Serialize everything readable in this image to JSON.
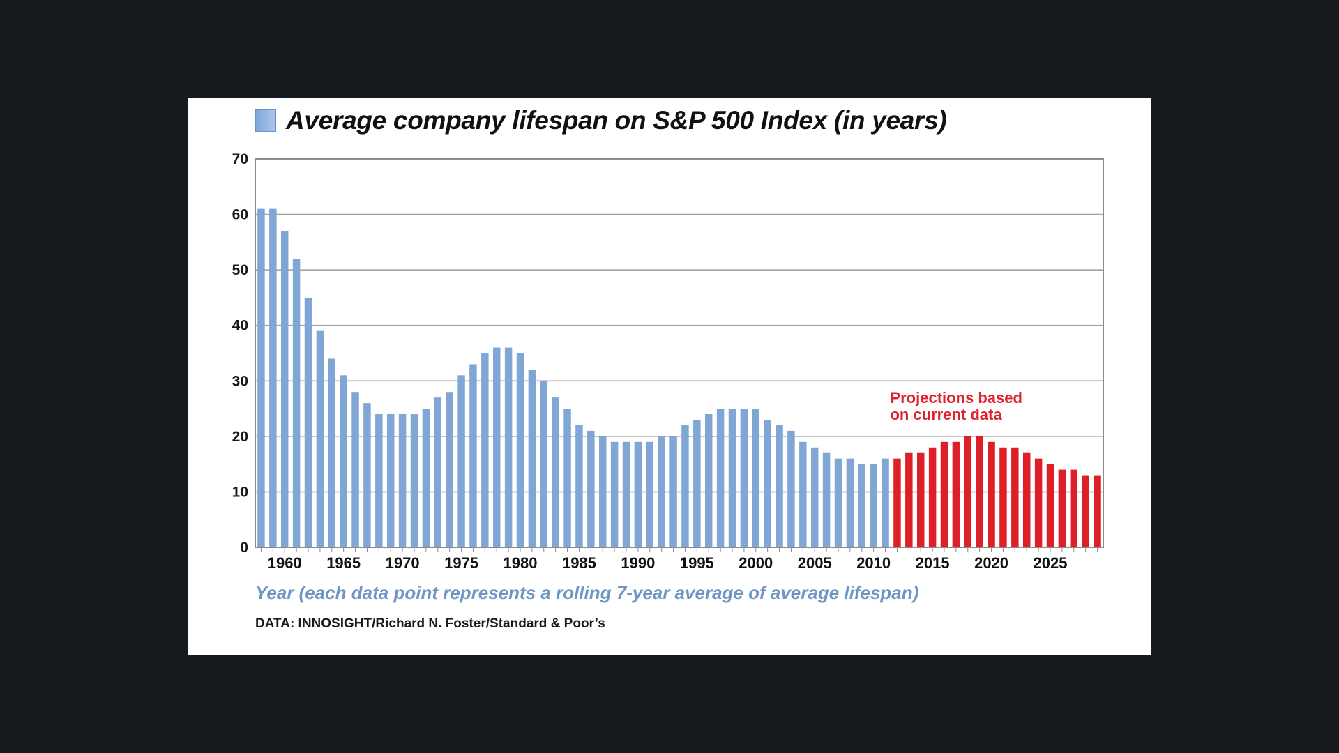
{
  "chart_data": {
    "type": "bar",
    "title": "Average company lifespan on S&P 500 Index (in years)",
    "xlabel": "Year (each data point represents a rolling 7-year average of average lifespan)",
    "ylabel": "",
    "ylim": [
      0,
      70
    ],
    "yticks": [
      "0",
      "10",
      "20",
      "30",
      "40",
      "50",
      "60",
      "70"
    ],
    "xticks": [
      "1960",
      "1965",
      "1970",
      "1975",
      "1980",
      "1985",
      "1990",
      "1995",
      "2000",
      "2005",
      "2010",
      "2015",
      "2020",
      "2025"
    ],
    "grid": true,
    "legend_position": "top-left",
    "annotation": {
      "lines": [
        "Projections based",
        "on current data"
      ]
    },
    "series": [
      {
        "name": "Average company lifespan on S&P 500 Index (in years)",
        "color": "#7fa6d4",
        "x": [
          1958,
          1959,
          1960,
          1961,
          1962,
          1963,
          1964,
          1965,
          1966,
          1967,
          1968,
          1969,
          1970,
          1971,
          1972,
          1973,
          1974,
          1975,
          1976,
          1977,
          1978,
          1979,
          1980,
          1981,
          1982,
          1983,
          1984,
          1985,
          1986,
          1987,
          1988,
          1989,
          1990,
          1991,
          1992,
          1993,
          1994,
          1995,
          1996,
          1997,
          1998,
          1999,
          2000,
          2001,
          2002,
          2003,
          2004,
          2005,
          2006,
          2007,
          2008,
          2009,
          2010,
          2011
        ],
        "values": [
          61,
          61,
          57,
          52,
          45,
          39,
          34,
          31,
          28,
          26,
          24,
          24,
          24,
          24,
          25,
          27,
          28,
          31,
          33,
          35,
          36,
          36,
          35,
          32,
          30,
          27,
          25,
          22,
          21,
          20,
          19,
          19,
          19,
          19,
          20,
          20,
          22,
          23,
          24,
          25,
          25,
          25,
          25,
          23,
          22,
          21,
          19,
          18,
          17,
          16,
          16,
          15,
          15,
          16
        ]
      },
      {
        "name": "",
        "color": "#dd1f27",
        "x": [
          2012,
          2013,
          2014,
          2015,
          2016,
          2017,
          2018,
          2019,
          2020,
          2021,
          2022,
          2023,
          2024,
          2025,
          2026,
          2027,
          2028,
          2029
        ],
        "values": [
          16,
          17,
          17,
          18,
          19,
          19,
          20,
          20,
          19,
          18,
          18,
          17,
          16,
          15,
          14,
          14,
          13,
          13
        ]
      }
    ]
  },
  "caption": {
    "x_axis_title": "Year (each data point represents a rolling 7-year average of average lifespan)",
    "source": "DATA: INNOSIGHT/Richard N. Foster/Standard & Poor’s"
  },
  "colors": {
    "page_background": "#16191d",
    "card_background": "#ffffff",
    "historic_bar": "#7fa6d4",
    "projection_bar": "#dd1f27",
    "grid": "#a3a3a3"
  }
}
